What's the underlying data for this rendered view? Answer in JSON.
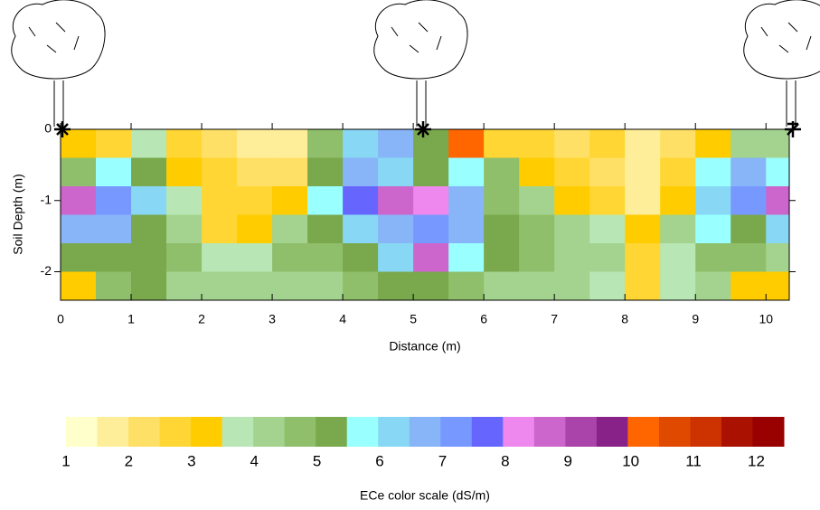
{
  "chart_data": {
    "type": "contour",
    "xlabel": "Distance (m)",
    "ylabel": "Soil Depth (m)",
    "xlim": [
      0,
      10.33
    ],
    "ylim": [
      -2.4,
      0
    ],
    "xticks": [
      0,
      1,
      2,
      3,
      4,
      5,
      6,
      7,
      8,
      9,
      10
    ],
    "yticks": [
      0,
      -1,
      -2
    ],
    "x": [
      0,
      0.5,
      1,
      1.5,
      2,
      2.5,
      3,
      3.5,
      4,
      4.5,
      5,
      5.5,
      6,
      6.5,
      7,
      7.5,
      8,
      8.5,
      9,
      9.5,
      10
    ],
    "y": [
      0,
      -0.4,
      -0.8,
      -1.2,
      -1.6,
      -2.0
    ],
    "z": [
      [
        3,
        2.5,
        3.5,
        2.5,
        2,
        1.5,
        1.5,
        4.5,
        6,
        6.5,
        5,
        10,
        2.5,
        2.5,
        2,
        2.5,
        1.5,
        2,
        3,
        4,
        4
      ],
      [
        4.5,
        5.5,
        5,
        3,
        2.5,
        2,
        2,
        5,
        6.5,
        6,
        5,
        5.5,
        4.5,
        3,
        2.5,
        2,
        1.5,
        2.5,
        5.5,
        6.5,
        5.5
      ],
      [
        8.5,
        7,
        6,
        3.5,
        2.5,
        2.5,
        3,
        5.5,
        7.5,
        8.5,
        8,
        6.5,
        4.5,
        4,
        3,
        2.5,
        1.5,
        3,
        6,
        7,
        8.5
      ],
      [
        6.5,
        6.5,
        5,
        4,
        2.5,
        3,
        4,
        5,
        6,
        6.5,
        7,
        6.5,
        5,
        4.5,
        4,
        3.5,
        3,
        4,
        5.5,
        5,
        6
      ],
      [
        5,
        5,
        5,
        4.5,
        3.5,
        3.5,
        4.5,
        4.5,
        5,
        6,
        8.5,
        5.5,
        5,
        4.5,
        4,
        4,
        2.5,
        3.5,
        4.5,
        4.5,
        4
      ],
      [
        3,
        4.5,
        5,
        4,
        4,
        4,
        4,
        4,
        4.5,
        5,
        5,
        4.5,
        4,
        4,
        4,
        3.5,
        2.5,
        3.5,
        4,
        3,
        3
      ]
    ],
    "colorbar": {
      "label": "ECe color scale (dS/m)",
      "lim": [
        1,
        12.44
      ],
      "ticks": [
        1,
        2,
        3,
        4,
        5,
        6,
        7,
        8,
        9,
        10,
        11,
        12
      ],
      "colors": [
        "#ffffcc",
        "#ffee99",
        "#ffe066",
        "#ffd633",
        "#ffcc00",
        "#b8e6b4",
        "#a3d38e",
        "#8fbf6a",
        "#7aa84c",
        "#99ffff",
        "#88d8f5",
        "#88b4f8",
        "#7799ff",
        "#6666ff",
        "#ee88ee",
        "#cc66cc",
        "#aa44aa",
        "#882288",
        "#ff6600",
        "#e04a00",
        "#cc3300",
        "#aa1100",
        "#990000"
      ]
    }
  }
}
